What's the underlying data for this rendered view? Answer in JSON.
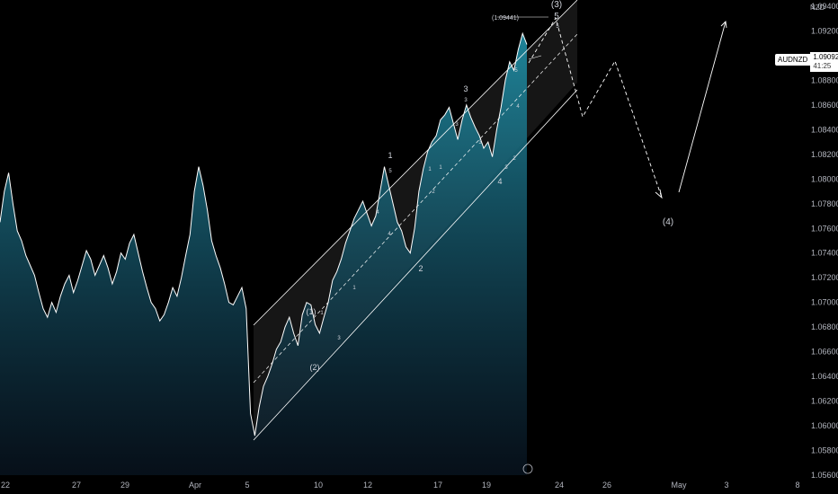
{
  "chart_data": {
    "type": "line",
    "symbol": "AUDNZD",
    "currency": "NZD",
    "last_price": "1.09092",
    "countdown": "41:25",
    "ylim": [
      1.056,
      1.094
    ],
    "y_ticks": [
      "1.09400",
      "1.09200",
      "1.09000",
      "1.08800",
      "1.08600",
      "1.08400",
      "1.08200",
      "1.08000",
      "1.07800",
      "1.07600",
      "1.07400",
      "1.07200",
      "1.07000",
      "1.06800",
      "1.06600",
      "1.06400",
      "1.06200",
      "1.06000",
      "1.05800",
      "1.05600"
    ],
    "x_ticks": [
      "22",
      "27",
      "29",
      "Apr",
      "5",
      "10",
      "12",
      "17",
      "19",
      "24",
      "26",
      "May",
      "3",
      "8"
    ],
    "price_series": [
      1.0765,
      1.079,
      1.0805,
      1.078,
      1.0758,
      1.075,
      1.0738,
      1.073,
      1.0722,
      1.0708,
      1.0695,
      1.0688,
      1.07,
      1.0692,
      1.0705,
      1.0715,
      1.0722,
      1.0708,
      1.0718,
      1.073,
      1.0742,
      1.0735,
      1.0722,
      1.073,
      1.0738,
      1.0728,
      1.0715,
      1.0725,
      1.074,
      1.0735,
      1.0748,
      1.0755,
      1.074,
      1.0725,
      1.0712,
      1.07,
      1.0695,
      1.0685,
      1.069,
      1.07,
      1.0712,
      1.0705,
      1.072,
      1.0738,
      1.0755,
      1.079,
      1.081,
      1.0795,
      1.0775,
      1.075,
      1.0738,
      1.0728,
      1.0715,
      1.07,
      1.0698,
      1.0705,
      1.0712,
      1.0695,
      1.061,
      1.0592,
      1.0615,
      1.0632,
      1.064,
      1.065,
      1.0662,
      1.0668,
      1.068,
      1.0688,
      1.0675,
      1.0665,
      1.069,
      1.07,
      1.0698,
      1.0682,
      1.0675,
      1.0688,
      1.07,
      1.0718,
      1.0725,
      1.0735,
      1.0748,
      1.0758,
      1.0768,
      1.0775,
      1.0782,
      1.0772,
      1.0762,
      1.077,
      1.079,
      1.081,
      1.0795,
      1.078,
      1.0765,
      1.0758,
      1.0745,
      1.074,
      1.076,
      1.079,
      1.0808,
      1.0822,
      1.083,
      1.0835,
      1.0848,
      1.0852,
      1.0858,
      1.0845,
      1.0832,
      1.0848,
      1.086,
      1.085,
      1.0842,
      1.0835,
      1.0825,
      1.083,
      1.0818,
      1.084,
      1.0858,
      1.088,
      1.0895,
      1.0888,
      1.0905,
      1.0918,
      1.0909
    ],
    "wave_labels": [
      {
        "text": "(3)"
      },
      {
        "text": "5"
      },
      {
        "text": "5"
      },
      {
        "text": "3"
      },
      {
        "text": "3"
      },
      {
        "text": "4"
      },
      {
        "text": "4"
      },
      {
        "text": "3"
      },
      {
        "text": "3"
      },
      {
        "text": "1"
      },
      {
        "text": "1"
      },
      {
        "text": "5"
      },
      {
        "text": "1"
      },
      {
        "text": "1"
      },
      {
        "text": "2"
      },
      {
        "text": "2"
      },
      {
        "text": "2"
      },
      {
        "text": "4"
      },
      {
        "text": "4"
      },
      {
        "text": "5"
      },
      {
        "text": "3"
      },
      {
        "text": "(1)"
      },
      {
        "text": "1"
      },
      {
        "text": "3"
      },
      {
        "text": "(2)"
      },
      {
        "text": "(4)"
      }
    ],
    "annotation": "(1.09441)",
    "colors": {
      "line": "#ffffff",
      "area_top": "#1f8aa0",
      "area_bottom": "#0b1a2a",
      "channel": "#ffffff",
      "projection": "#ffffff"
    }
  }
}
